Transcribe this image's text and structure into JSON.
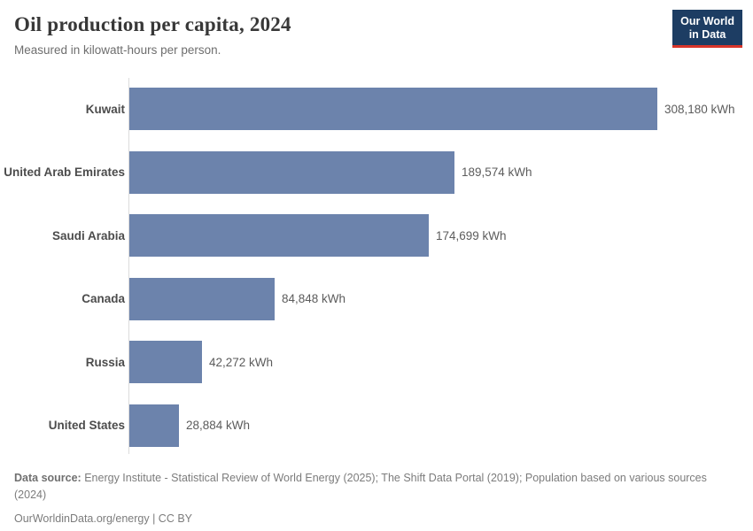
{
  "header": {
    "title": "Oil production per capita, 2024",
    "subtitle": "Measured in kilowatt-hours per person.",
    "logo": {
      "line1": "Our World",
      "line2": "in Data"
    }
  },
  "chart_data": {
    "type": "bar",
    "orientation": "horizontal",
    "title": "Oil production per capita, 2024",
    "xlabel": "",
    "ylabel": "",
    "unit": "kWh",
    "grid": false,
    "legend": false,
    "xlim": [
      0,
      308180
    ],
    "categories": [
      "Kuwait",
      "United Arab Emirates",
      "Saudi Arabia",
      "Canada",
      "Russia",
      "United States"
    ],
    "values": [
      308180,
      189574,
      174699,
      84848,
      42272,
      28884
    ],
    "value_labels": [
      "308,180 kWh",
      "189,574 kWh",
      "174,699 kWh",
      "84,848 kWh",
      "42,272 kWh",
      "28,884 kWh"
    ],
    "bar_color": "#6c83ac",
    "axis_color": "#dcdcdc"
  },
  "footer": {
    "source_label": "Data source:",
    "source_text": " Energy Institute - Statistical Review of World Energy (2025); The Shift Data Portal (2019); Population based on various sources (2024)",
    "link_text": "OurWorldinData.org/energy | CC BY"
  }
}
